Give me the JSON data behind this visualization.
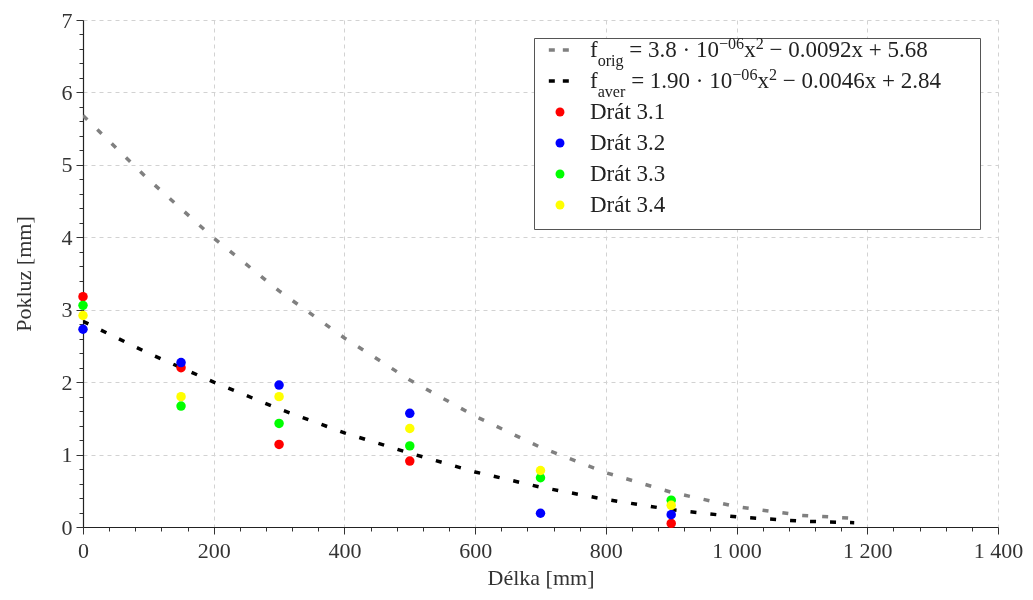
{
  "chart_data": {
    "type": "scatter",
    "xlabel": "Délka [mm]",
    "ylabel": "Pokluz [mm]",
    "xlim": [
      0,
      1400
    ],
    "ylim": [
      0,
      7
    ],
    "xticks": [
      0,
      {
        "value": 40,
        "label": null
      },
      {
        "value": 80,
        "label": null
      },
      {
        "value": 120,
        "label": null
      },
      {
        "value": 160,
        "label": null
      },
      200,
      {
        "value": 240,
        "label": null
      },
      {
        "value": 280,
        "label": null
      },
      {
        "value": 320,
        "label": null
      },
      {
        "value": 360,
        "label": null
      },
      400,
      {
        "value": 440,
        "label": null
      },
      {
        "value": 480,
        "label": null
      },
      {
        "value": 520,
        "label": null
      },
      {
        "value": 560,
        "label": null
      },
      600,
      {
        "value": 640,
        "label": null
      },
      {
        "value": 680,
        "label": null
      },
      {
        "value": 720,
        "label": null
      },
      {
        "value": 760,
        "label": null
      },
      800,
      {
        "value": 840,
        "label": null
      },
      {
        "value": 880,
        "label": null
      },
      {
        "value": 920,
        "label": null
      },
      {
        "value": 960,
        "label": null
      },
      {
        "value": 1000,
        "label": "1 000"
      },
      {
        "value": 1040,
        "label": null
      },
      {
        "value": 1080,
        "label": null
      },
      {
        "value": 1120,
        "label": null
      },
      {
        "value": 1160,
        "label": null
      },
      {
        "value": 1200,
        "label": "1 200"
      },
      {
        "value": 1240,
        "label": null
      },
      {
        "value": 1280,
        "label": null
      },
      {
        "value": 1320,
        "label": null
      },
      {
        "value": 1360,
        "label": null
      },
      {
        "value": 1400,
        "label": "1 400"
      }
    ],
    "yticks": [
      0,
      {
        "value": 0.2,
        "label": null
      },
      {
        "value": 0.4,
        "label": null
      },
      {
        "value": 0.6,
        "label": null
      },
      {
        "value": 0.8,
        "label": null
      },
      1,
      {
        "value": 1.2,
        "label": null
      },
      {
        "value": 1.4,
        "label": null
      },
      {
        "value": 1.6,
        "label": null
      },
      {
        "value": 1.8,
        "label": null
      },
      2,
      {
        "value": 2.2,
        "label": null
      },
      {
        "value": 2.4,
        "label": null
      },
      {
        "value": 2.6,
        "label": null
      },
      {
        "value": 2.8,
        "label": null
      },
      3,
      {
        "value": 3.2,
        "label": null
      },
      {
        "value": 3.4,
        "label": null
      },
      {
        "value": 3.6,
        "label": null
      },
      {
        "value": 3.8,
        "label": null
      },
      4,
      {
        "value": 4.2,
        "label": null
      },
      {
        "value": 4.4,
        "label": null
      },
      {
        "value": 4.6,
        "label": null
      },
      {
        "value": 4.8,
        "label": null
      },
      5,
      {
        "value": 5.2,
        "label": null
      },
      {
        "value": 5.4,
        "label": null
      },
      {
        "value": 5.6,
        "label": null
      },
      {
        "value": 5.8,
        "label": null
      },
      6,
      {
        "value": 6.2,
        "label": null
      },
      {
        "value": 6.4,
        "label": null
      },
      {
        "value": 6.6,
        "label": null
      },
      {
        "value": 6.8,
        "label": null
      },
      7
    ],
    "grid": true,
    "legend": "top right",
    "marker": "circle",
    "x": [
      0,
      150,
      300,
      500,
      700,
      900
    ],
    "series": [
      {
        "name": "f$_{orig}$ = 3.8 · 10$^{−06}$x$^{2}$ − 0.0092x + 5.68",
        "type": "line",
        "color": "#808080",
        "line_style": "dashed",
        "marker": "none",
        "x": [
          0,
          100,
          200,
          300,
          400,
          500,
          600,
          700,
          800,
          900,
          1000,
          1100,
          1180
        ],
        "values": [
          5.68,
          4.8,
          3.99,
          3.26,
          2.61,
          2.03,
          1.53,
          1.1,
          0.75,
          0.48,
          0.28,
          0.16,
          0.12
        ]
      },
      {
        "name": "f$_{aver}$ = 1.90 · 10$^{−06}$x$^{2}$ − 0.0046x + 2.84",
        "type": "line",
        "color": "#000000",
        "line_style": "dashed",
        "marker": "none",
        "x": [
          0,
          100,
          200,
          300,
          400,
          500,
          600,
          700,
          800,
          900,
          1000,
          1100,
          1180
        ],
        "values": [
          2.84,
          2.4,
          2,
          1.63,
          1.3,
          1.02,
          0.76,
          0.55,
          0.38,
          0.24,
          0.14,
          0.08,
          0.06
        ]
      },
      {
        "name": "Drát 3.1",
        "color": "#ff0000",
        "values": [
          3.18,
          2.2,
          1.14,
          0.91,
          null,
          0.05
        ]
      },
      {
        "name": "Drát 3.2",
        "color": "#0000ff",
        "values": [
          2.73,
          2.27,
          1.96,
          1.57,
          0.19,
          0.17
        ]
      },
      {
        "name": "Drát 3.3",
        "color": "#00ff00",
        "values": [
          3.06,
          1.67,
          1.43,
          1.12,
          0.68,
          0.37
        ]
      },
      {
        "name": "Drát 3.4",
        "color": "#ffff00",
        "values": [
          2.92,
          1.8,
          1.8,
          1.36,
          0.78,
          0.3
        ]
      }
    ]
  }
}
